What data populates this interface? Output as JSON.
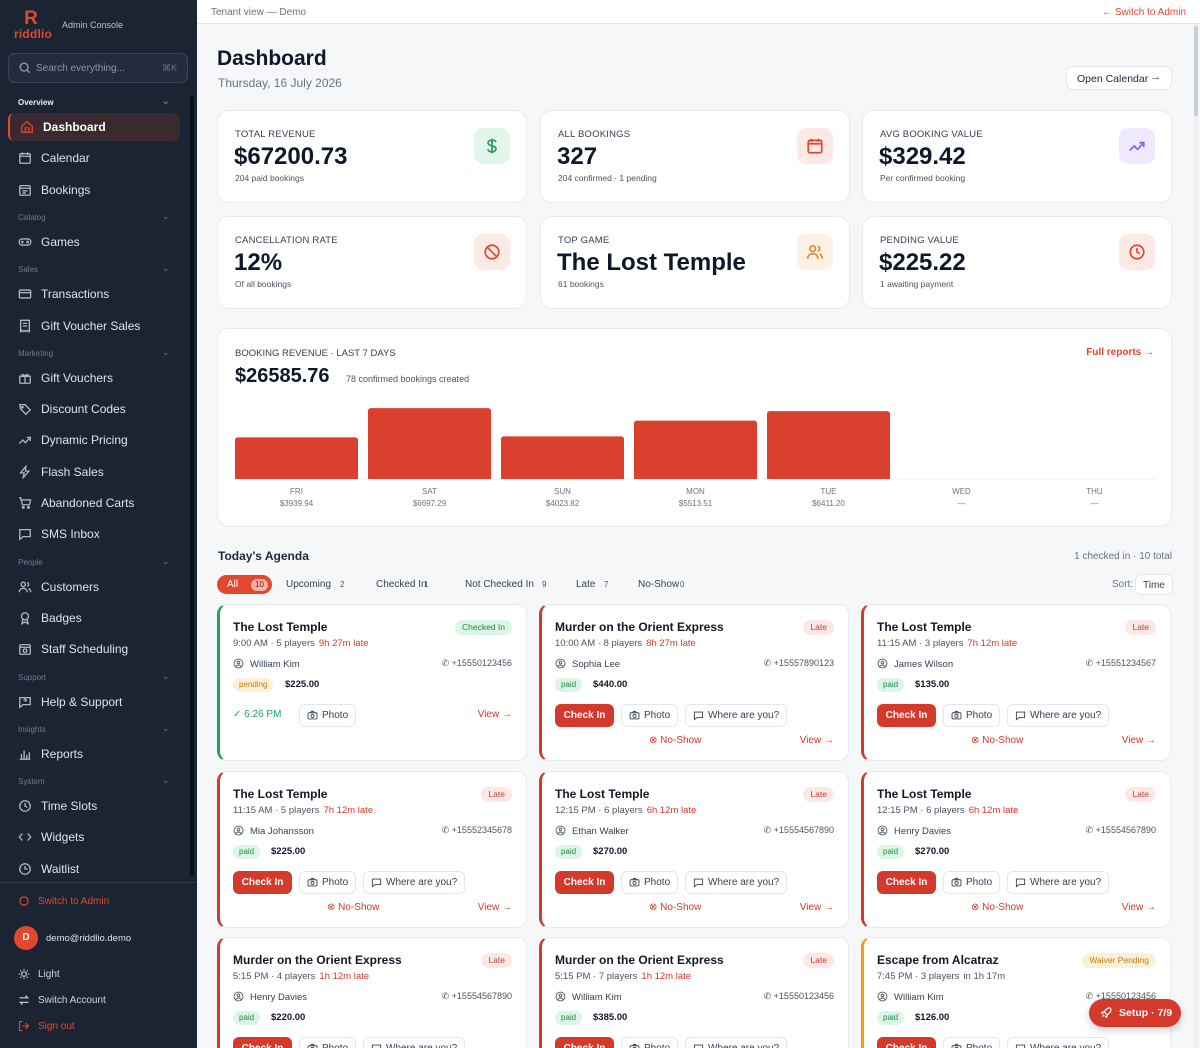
{
  "brand": {
    "name": "riddlio",
    "console_label": "Admin Console",
    "accent": "#e2472f"
  },
  "search": {
    "placeholder": "Search everything...",
    "shortcut": "⌘K"
  },
  "sidebar": {
    "sections": [
      {
        "label": "Overview",
        "items": [
          {
            "label": "Dashboard",
            "icon": "home-icon",
            "active": true
          },
          {
            "label": "Calendar",
            "icon": "calendar-icon"
          },
          {
            "label": "Bookings",
            "icon": "calendar-list-icon"
          }
        ]
      },
      {
        "label": "Catalog",
        "items": [
          {
            "label": "Games",
            "icon": "gamepad-icon"
          }
        ]
      },
      {
        "label": "Sales",
        "items": [
          {
            "label": "Transactions",
            "icon": "card-icon"
          },
          {
            "label": "Gift Voucher Sales",
            "icon": "receipt-icon"
          }
        ]
      },
      {
        "label": "Marketing",
        "items": [
          {
            "label": "Gift Vouchers",
            "icon": "gift-icon"
          },
          {
            "label": "Discount Codes",
            "icon": "tag-icon"
          },
          {
            "label": "Dynamic Pricing",
            "icon": "trend-icon"
          },
          {
            "label": "Flash Sales",
            "icon": "bolt-icon"
          },
          {
            "label": "Abandoned Carts",
            "icon": "cart-icon"
          },
          {
            "label": "SMS Inbox",
            "icon": "message-icon"
          }
        ]
      },
      {
        "label": "People",
        "items": [
          {
            "label": "Customers",
            "icon": "users-icon"
          },
          {
            "label": "Badges",
            "icon": "badge-icon"
          },
          {
            "label": "Staff Scheduling",
            "icon": "calendar-clock-icon"
          }
        ]
      },
      {
        "label": "Support",
        "items": [
          {
            "label": "Help & Support",
            "icon": "help-chat-icon"
          }
        ]
      },
      {
        "label": "Insights",
        "items": [
          {
            "label": "Reports",
            "icon": "bar-chart-icon"
          }
        ]
      },
      {
        "label": "System",
        "items": [
          {
            "label": "Time Slots",
            "icon": "clock-icon"
          },
          {
            "label": "Widgets",
            "icon": "code-icon"
          },
          {
            "label": "Waitlist",
            "icon": "clock-list-icon"
          }
        ]
      }
    ],
    "footer": {
      "switch_admin": "Switch to Admin",
      "avatar_initial": "D",
      "email": "demo@riddlio.demo",
      "theme": "Light",
      "switch_account": "Switch Account",
      "sign_out": "Sign out"
    }
  },
  "topbar": {
    "tenant_view": "Tenant view — Demo",
    "switch_admin": "← Switch to Admin"
  },
  "header": {
    "title": "Dashboard",
    "date": "Thursday, 16 July 2026",
    "open_calendar": "Open Calendar"
  },
  "stats": [
    {
      "label": "TOTAL REVENUE",
      "value": "$67200.73",
      "sub": "204 paid bookings",
      "icon": "dollar-icon",
      "color": "#1e9e5a",
      "bg": "#e3f6ec"
    },
    {
      "label": "ALL BOOKINGS",
      "value": "327",
      "sub": "204 confirmed · 1 pending",
      "icon": "calendar-icon",
      "color": "#e2472f",
      "bg": "#fde9e6"
    },
    {
      "label": "AVG BOOKING VALUE",
      "value": "$329.42",
      "sub": "Per confirmed booking",
      "icon": "trend-up-icon",
      "color": "#8b5cf6",
      "bg": "#efeafd"
    },
    {
      "label": "CANCELLATION RATE",
      "value": "12%",
      "sub": "Of all bookings",
      "icon": "ban-icon",
      "color": "#e2472f",
      "bg": "#fde9e6"
    },
    {
      "label": "TOP GAME",
      "value": "The Lost Temple",
      "sub": "61 bookings",
      "icon": "users-icon",
      "color": "#e8862a",
      "bg": "#fdf0e4"
    },
    {
      "label": "PENDING VALUE",
      "value": "$225.22",
      "sub": "1 awaiting payment",
      "icon": "clock-icon",
      "color": "#e2472f",
      "bg": "#fde9e6"
    }
  ],
  "revenue": {
    "label": "BOOKING REVENUE · LAST 7 DAYS",
    "total": "$26585.76",
    "note": "78 confirmed bookings created",
    "link": "Full reports"
  },
  "chart_data": {
    "type": "bar",
    "categories": [
      "FRI",
      "SAT",
      "SUN",
      "MON",
      "TUE",
      "WED",
      "THU"
    ],
    "values": [
      3939.94,
      6697.29,
      4023.82,
      5513.51,
      6411.2,
      null,
      null
    ],
    "value_labels": [
      "$3939.94",
      "$6697.29",
      "$4023.82",
      "$5513.51",
      "$6411.20",
      "—",
      "—"
    ],
    "bar_color": "#d9402d",
    "ylim": [
      0,
      6900
    ]
  },
  "agenda": {
    "title": "Today's Agenda",
    "summary": "1 checked in · 10 total",
    "filters": [
      {
        "label": "All",
        "count": "10",
        "active": true
      },
      {
        "label": "Upcoming",
        "count": "2"
      },
      {
        "label": "Checked In",
        "count": "1"
      },
      {
        "label": "Not Checked In",
        "count": "9"
      },
      {
        "label": "Late",
        "count": "7"
      },
      {
        "label": "No-Show",
        "count": "0"
      }
    ],
    "sort_label": "Sort:",
    "sort_value": "Time",
    "actions": {
      "check_in": "Check In",
      "photo": "Photo",
      "where": "Where are you?",
      "no_show": "No-Show",
      "view": "View →"
    },
    "bookings": [
      {
        "game": "The Lost Temple",
        "time": "9:00 AM",
        "players": "5 players",
        "delta": "9h 27m late",
        "customer": "William Kim",
        "phone": "+15550123456",
        "payment": "pending",
        "amount": "$225.00",
        "status": "Checked In",
        "checked_time": "6:26 PM"
      },
      {
        "game": "Murder on the Orient Express",
        "time": "10:00 AM",
        "players": "8 players",
        "delta": "8h 27m late",
        "customer": "Sophia Lee",
        "phone": "+15557890123",
        "payment": "paid",
        "amount": "$440.00",
        "status": "Late"
      },
      {
        "game": "The Lost Temple",
        "time": "11:15 AM",
        "players": "3 players",
        "delta": "7h 12m late",
        "customer": "James Wilson",
        "phone": "+15551234567",
        "payment": "paid",
        "amount": "$135.00",
        "status": "Late"
      },
      {
        "game": "The Lost Temple",
        "time": "11:15 AM",
        "players": "5 players",
        "delta": "7h 12m late",
        "customer": "Mia Johansson",
        "phone": "+15552345678",
        "payment": "paid",
        "amount": "$225.00",
        "status": "Late"
      },
      {
        "game": "The Lost Temple",
        "time": "12:15 PM",
        "players": "6 players",
        "delta": "6h 12m late",
        "customer": "Ethan Walker",
        "phone": "+15554567890",
        "payment": "paid",
        "amount": "$270.00",
        "status": "Late"
      },
      {
        "game": "The Lost Temple",
        "time": "12:15 PM",
        "players": "6 players",
        "delta": "6h 12m late",
        "customer": "Henry Davies",
        "phone": "+15554567890",
        "payment": "paid",
        "amount": "$270.00",
        "status": "Late"
      },
      {
        "game": "Murder on the Orient Express",
        "time": "5:15 PM",
        "players": "4 players",
        "delta": "1h 12m late",
        "customer": "Henry Davies",
        "phone": "+15554567890",
        "payment": "paid",
        "amount": "$220.00",
        "status": "Late"
      },
      {
        "game": "Murder on the Orient Express",
        "time": "5:15 PM",
        "players": "7 players",
        "delta": "1h 12m late",
        "customer": "William Kim",
        "phone": "+15550123456",
        "payment": "paid",
        "amount": "$385.00",
        "status": "Late"
      },
      {
        "game": "Escape from Alcatraz",
        "time": "7:45 PM",
        "players": "3 players",
        "delta": "in 1h 17m",
        "customer": "William Kim",
        "phone": "+15550123456",
        "payment": "paid",
        "amount": "$126.00",
        "status": "Waiver Pending"
      }
    ]
  },
  "setup": {
    "label": "Setup · 7/9"
  }
}
